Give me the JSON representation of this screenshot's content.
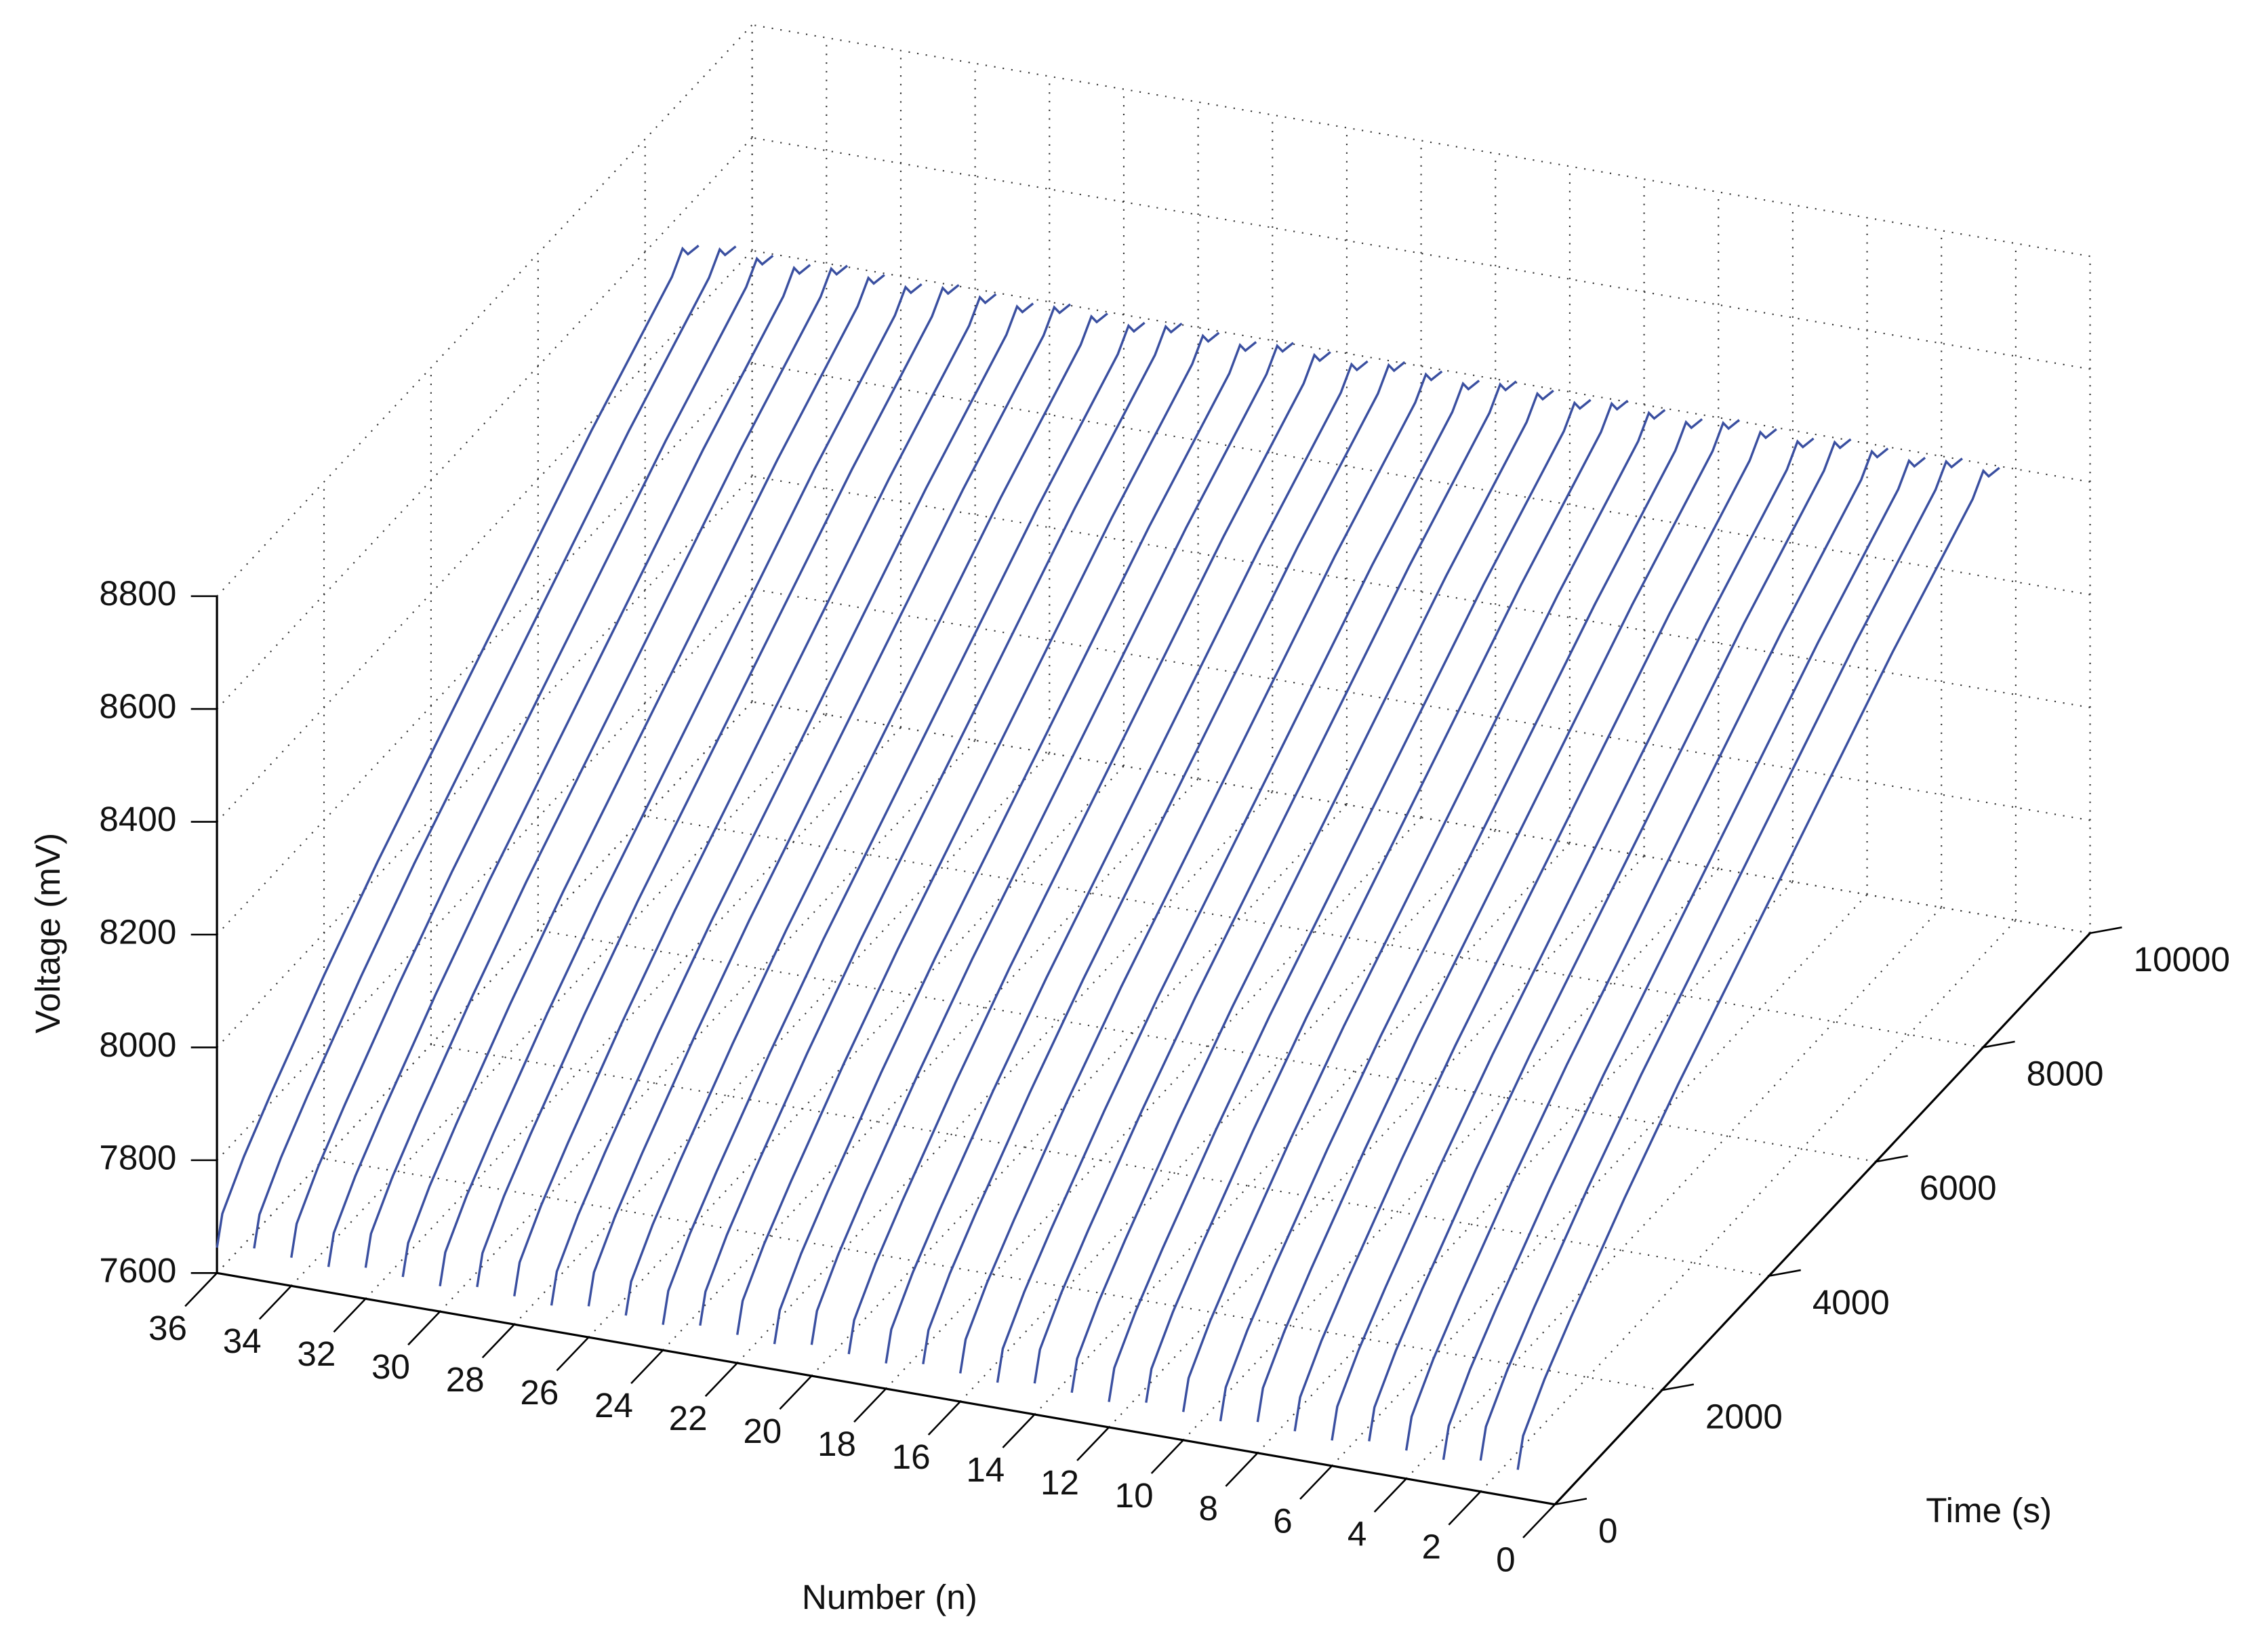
{
  "chart_data": {
    "type": "line3d",
    "xlabel": "Time (s)",
    "ylabel": "Voltage (mV)",
    "zlabel": "Number (n)",
    "xlim": [
      0,
      10000
    ],
    "xticks": [
      0,
      2000,
      4000,
      6000,
      8000,
      10000
    ],
    "ylim": [
      7600,
      8800
    ],
    "yticks": [
      7600,
      7800,
      8000,
      8200,
      8400,
      8600,
      8800
    ],
    "zlim": [
      0,
      36
    ],
    "zticks": [
      0,
      2,
      4,
      6,
      8,
      10,
      12,
      14,
      16,
      18,
      20,
      22,
      24,
      26,
      28,
      30,
      32,
      34,
      36
    ],
    "grid": true,
    "color": "#3a4fa0",
    "x": [
      0,
      100,
      500,
      1000,
      2000,
      3000,
      4000,
      5000,
      6000,
      7000,
      8000,
      8500,
      8700,
      8800,
      9000
    ],
    "series": [
      {
        "z": 1,
        "values": [
          7650,
          7700,
          7760,
          7820,
          7930,
          8030,
          8120,
          8210,
          8300,
          8390,
          8470,
          8510,
          8540,
          8520,
          8515
        ]
      },
      {
        "z": 2,
        "values": [
          7655,
          7705,
          7765,
          7825,
          7935,
          8035,
          8125,
          8215,
          8305,
          8395,
          8475,
          8515,
          8545,
          8525,
          8520
        ]
      },
      {
        "z": 3,
        "values": [
          7645,
          7695,
          7755,
          7815,
          7925,
          8025,
          8115,
          8205,
          8295,
          8385,
          8465,
          8505,
          8535,
          8515,
          8510
        ]
      },
      {
        "z": 4,
        "values": [
          7650,
          7700,
          7760,
          7820,
          7930,
          8030,
          8120,
          8210,
          8300,
          8390,
          8470,
          8510,
          8540,
          8520,
          8515
        ]
      },
      {
        "z": 5,
        "values": [
          7655,
          7705,
          7765,
          7825,
          7935,
          8035,
          8125,
          8215,
          8305,
          8395,
          8475,
          8515,
          8545,
          8525,
          8520
        ]
      },
      {
        "z": 6,
        "values": [
          7645,
          7695,
          7755,
          7815,
          7925,
          8025,
          8115,
          8205,
          8295,
          8385,
          8465,
          8505,
          8535,
          8515,
          8510
        ]
      },
      {
        "z": 7,
        "values": [
          7650,
          7700,
          7760,
          7820,
          7930,
          8030,
          8120,
          8210,
          8300,
          8390,
          8470,
          8510,
          8540,
          8520,
          8515
        ]
      },
      {
        "z": 8,
        "values": [
          7655,
          7705,
          7765,
          7825,
          7935,
          8035,
          8125,
          8215,
          8305,
          8395,
          8475,
          8515,
          8545,
          8525,
          8520
        ]
      },
      {
        "z": 9,
        "values": [
          7645,
          7695,
          7755,
          7815,
          7925,
          8025,
          8115,
          8205,
          8295,
          8385,
          8465,
          8505,
          8535,
          8515,
          8510
        ]
      },
      {
        "z": 10,
        "values": [
          7650,
          7700,
          7760,
          7820,
          7930,
          8030,
          8120,
          8210,
          8300,
          8390,
          8470,
          8510,
          8540,
          8520,
          8515
        ]
      },
      {
        "z": 11,
        "values": [
          7655,
          7705,
          7765,
          7825,
          7935,
          8035,
          8125,
          8215,
          8305,
          8395,
          8475,
          8515,
          8545,
          8525,
          8520
        ]
      },
      {
        "z": 12,
        "values": [
          7645,
          7695,
          7755,
          7815,
          7925,
          8025,
          8115,
          8205,
          8295,
          8385,
          8465,
          8505,
          8535,
          8515,
          8510
        ]
      },
      {
        "z": 13,
        "values": [
          7650,
          7700,
          7760,
          7820,
          7930,
          8030,
          8120,
          8210,
          8300,
          8390,
          8470,
          8510,
          8540,
          8520,
          8515
        ]
      },
      {
        "z": 14,
        "values": [
          7655,
          7705,
          7765,
          7825,
          7935,
          8035,
          8125,
          8215,
          8305,
          8395,
          8475,
          8515,
          8545,
          8525,
          8520
        ]
      },
      {
        "z": 15,
        "values": [
          7645,
          7695,
          7755,
          7815,
          7925,
          8025,
          8115,
          8205,
          8295,
          8385,
          8465,
          8505,
          8535,
          8515,
          8510
        ]
      },
      {
        "z": 16,
        "values": [
          7650,
          7700,
          7760,
          7820,
          7930,
          8030,
          8120,
          8210,
          8300,
          8390,
          8470,
          8510,
          8540,
          8520,
          8515
        ]
      },
      {
        "z": 17,
        "values": [
          7655,
          7705,
          7765,
          7825,
          7935,
          8035,
          8125,
          8215,
          8305,
          8395,
          8475,
          8515,
          8545,
          8525,
          8520
        ]
      },
      {
        "z": 18,
        "values": [
          7645,
          7695,
          7755,
          7815,
          7925,
          8025,
          8115,
          8205,
          8295,
          8385,
          8465,
          8505,
          8535,
          8515,
          8510
        ]
      },
      {
        "z": 19,
        "values": [
          7650,
          7700,
          7760,
          7820,
          7930,
          8030,
          8120,
          8210,
          8300,
          8390,
          8470,
          8510,
          8540,
          8520,
          8515
        ]
      },
      {
        "z": 20,
        "values": [
          7655,
          7705,
          7765,
          7825,
          7935,
          8035,
          8125,
          8215,
          8305,
          8395,
          8475,
          8515,
          8545,
          8525,
          8520
        ]
      },
      {
        "z": 21,
        "values": [
          7645,
          7695,
          7755,
          7815,
          7925,
          8025,
          8115,
          8205,
          8295,
          8385,
          8465,
          8505,
          8535,
          8515,
          8510
        ]
      },
      {
        "z": 22,
        "values": [
          7650,
          7700,
          7760,
          7820,
          7930,
          8030,
          8120,
          8210,
          8300,
          8390,
          8470,
          8510,
          8540,
          8520,
          8515
        ]
      },
      {
        "z": 23,
        "values": [
          7655,
          7705,
          7765,
          7825,
          7935,
          8035,
          8125,
          8215,
          8305,
          8395,
          8475,
          8515,
          8545,
          8525,
          8520
        ]
      },
      {
        "z": 24,
        "values": [
          7645,
          7695,
          7755,
          7815,
          7925,
          8025,
          8115,
          8205,
          8295,
          8385,
          8465,
          8505,
          8535,
          8515,
          8510
        ]
      },
      {
        "z": 25,
        "values": [
          7650,
          7700,
          7760,
          7820,
          7930,
          8030,
          8120,
          8210,
          8300,
          8390,
          8470,
          8510,
          8540,
          8520,
          8515
        ]
      },
      {
        "z": 26,
        "values": [
          7655,
          7705,
          7765,
          7825,
          7935,
          8035,
          8125,
          8215,
          8305,
          8395,
          8475,
          8515,
          8545,
          8525,
          8520
        ]
      },
      {
        "z": 27,
        "values": [
          7645,
          7695,
          7755,
          7815,
          7925,
          8025,
          8115,
          8205,
          8295,
          8385,
          8465,
          8505,
          8535,
          8515,
          8510
        ]
      },
      {
        "z": 28,
        "values": [
          7650,
          7700,
          7760,
          7820,
          7930,
          8030,
          8120,
          8210,
          8300,
          8390,
          8470,
          8510,
          8540,
          8520,
          8515
        ]
      },
      {
        "z": 29,
        "values": [
          7655,
          7705,
          7765,
          7825,
          7935,
          8035,
          8125,
          8215,
          8305,
          8395,
          8475,
          8515,
          8545,
          8525,
          8520
        ]
      },
      {
        "z": 30,
        "values": [
          7645,
          7695,
          7755,
          7815,
          7925,
          8025,
          8115,
          8205,
          8295,
          8385,
          8465,
          8505,
          8535,
          8515,
          8510
        ]
      },
      {
        "z": 31,
        "values": [
          7650,
          7700,
          7760,
          7820,
          7930,
          8030,
          8120,
          8210,
          8300,
          8390,
          8470,
          8510,
          8540,
          8520,
          8515
        ]
      },
      {
        "z": 32,
        "values": [
          7655,
          7705,
          7765,
          7825,
          7935,
          8035,
          8125,
          8215,
          8305,
          8395,
          8475,
          8515,
          8545,
          8525,
          8520
        ]
      },
      {
        "z": 33,
        "values": [
          7645,
          7695,
          7755,
          7815,
          7925,
          8025,
          8115,
          8205,
          8295,
          8385,
          8465,
          8505,
          8535,
          8515,
          8510
        ]
      },
      {
        "z": 34,
        "values": [
          7650,
          7700,
          7760,
          7820,
          7930,
          8030,
          8120,
          8210,
          8300,
          8390,
          8470,
          8510,
          8540,
          8520,
          8515
        ]
      },
      {
        "z": 35,
        "values": [
          7655,
          7705,
          7765,
          7825,
          7935,
          8035,
          8125,
          8215,
          8305,
          8395,
          8475,
          8515,
          8545,
          8525,
          8520
        ]
      },
      {
        "z": 36,
        "values": [
          7645,
          7695,
          7755,
          7815,
          7925,
          8025,
          8115,
          8205,
          8295,
          8385,
          8465,
          8505,
          8535,
          8515,
          8510
        ]
      }
    ]
  }
}
